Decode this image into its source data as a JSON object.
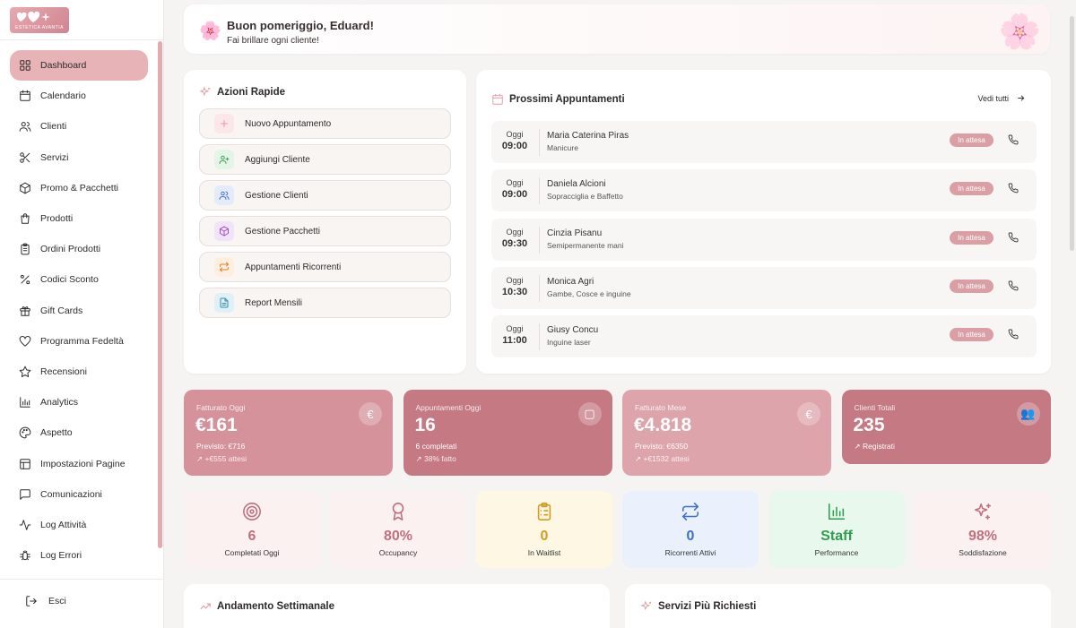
{
  "brand": {
    "tagline": "ESTETICA AVANTIA"
  },
  "sidebar": {
    "items": [
      {
        "label": "Dashboard",
        "icon": "dashboard-icon",
        "active": true
      },
      {
        "label": "Calendario",
        "icon": "calendar-icon"
      },
      {
        "label": "Clienti",
        "icon": "users-icon"
      },
      {
        "label": "Servizi",
        "icon": "scissors-icon"
      },
      {
        "label": "Promo & Pacchetti",
        "icon": "package-icon"
      },
      {
        "label": "Prodotti",
        "icon": "shopping-bag-icon"
      },
      {
        "label": "Ordini Prodotti",
        "icon": "clipboard-icon"
      },
      {
        "label": "Codici Sconto",
        "icon": "percent-icon"
      },
      {
        "label": "Gift Cards",
        "icon": "gift-icon"
      },
      {
        "label": "Programma Fedeltà",
        "icon": "heart-icon"
      },
      {
        "label": "Recensioni",
        "icon": "star-icon"
      },
      {
        "label": "Analytics",
        "icon": "bar-chart-icon"
      },
      {
        "label": "Aspetto",
        "icon": "palette-icon"
      },
      {
        "label": "Impostazioni Pagine",
        "icon": "layout-icon"
      },
      {
        "label": "Comunicazioni",
        "icon": "message-icon"
      },
      {
        "label": "Log Attività",
        "icon": "activity-icon"
      },
      {
        "label": "Log Errori",
        "icon": "bug-icon"
      }
    ],
    "logout_label": "Esci"
  },
  "greeting": {
    "title": "Buon pomeriggio, Eduard!",
    "subtitle": "Fai brillare ogni cliente!"
  },
  "quick_actions": {
    "title": "Azioni Rapide",
    "items": [
      {
        "label": "Nuovo Appuntamento",
        "icon": "plus-icon",
        "color": "#fbe7e9",
        "fg": "#e89aa3"
      },
      {
        "label": "Aggiungi Cliente",
        "icon": "user-plus-icon",
        "color": "#e3f5e7",
        "fg": "#3fa45a"
      },
      {
        "label": "Gestione Clienti",
        "icon": "users-icon",
        "color": "#e4ecfb",
        "fg": "#4a73d4"
      },
      {
        "label": "Gestione Pacchetti",
        "icon": "package-icon",
        "color": "#f1e4fa",
        "fg": "#a34cc9"
      },
      {
        "label": "Appuntamenti Ricorrenti",
        "icon": "repeat-icon",
        "color": "#fdeedd",
        "fg": "#e2842c"
      },
      {
        "label": "Report Mensili",
        "icon": "file-icon",
        "color": "#e0f0f7",
        "fg": "#2f8fb2"
      }
    ]
  },
  "appointments": {
    "title": "Prossimi Appuntamenti",
    "see_all": "Vedi tutti",
    "items": [
      {
        "day": "Oggi",
        "time": "09:00",
        "name": "Maria Caterina Piras",
        "service": "Manicure",
        "status": "In attesa"
      },
      {
        "day": "Oggi",
        "time": "09:00",
        "name": "Daniela Alcioni",
        "service": "Sopracciglia e Baffetto",
        "status": "In attesa"
      },
      {
        "day": "Oggi",
        "time": "09:30",
        "name": "Cinzia Pisanu",
        "service": "Semipermanente mani",
        "status": "In attesa"
      },
      {
        "day": "Oggi",
        "time": "10:30",
        "name": "Monica Agri",
        "service": "Gambe, Cosce e inguine",
        "status": "In attesa"
      },
      {
        "day": "Oggi",
        "time": "11:00",
        "name": "Giusy Concu",
        "service": "Inguine laser",
        "status": "In attesa"
      }
    ]
  },
  "stats": [
    {
      "label": "Fatturato Oggi",
      "value": "€161",
      "line1": "Previsto: €716",
      "line2": "↗ +€555 attesi",
      "icon": "euro-icon",
      "glyph": "€",
      "bg": "#d5929b"
    },
    {
      "label": "Appuntamenti Oggi",
      "value": "16",
      "line1": "6 completati",
      "line2": "↗ 38% fatto",
      "icon": "calendar-icon",
      "glyph": "▢",
      "bg": "#c57983"
    },
    {
      "label": "Fatturato Mese",
      "value": "€4.818",
      "line1": "Previsto: €6350",
      "line2": "↗ +€1532 attesi",
      "icon": "euro-icon",
      "glyph": "€",
      "bg": "#dda4ab"
    },
    {
      "label": "Clienti Totali",
      "value": "235",
      "line1": "↗ Registrati",
      "line2": "",
      "icon": "users-icon",
      "glyph": "👥",
      "bg": "#c57983"
    }
  ],
  "mini_stats": [
    {
      "value": "6",
      "label": "Completati Oggi",
      "icon": "target-icon",
      "color": "#c06f7c",
      "bg": "#fbf1f1"
    },
    {
      "value": "80%",
      "label": "Occupancy",
      "icon": "award-icon",
      "color": "#c06f7c",
      "bg": "#fbf1f1"
    },
    {
      "value": "0",
      "label": "In Waitlist",
      "icon": "clipboard-list-icon",
      "color": "#d59a22",
      "bg": "#fdf7e3"
    },
    {
      "value": "0",
      "label": "Ricorrenti Attivi",
      "icon": "repeat-icon",
      "color": "#3a6fd1",
      "bg": "#eaf1fc"
    },
    {
      "value": "Staff",
      "label": "Performance",
      "icon": "bar-chart-icon",
      "color": "#2f9e4f",
      "bg": "#e9f8ed"
    },
    {
      "value": "98%",
      "label": "Soddisfazione",
      "icon": "sparkles-icon",
      "color": "#c06f7c",
      "bg": "#fbf1f1"
    }
  ],
  "sections": {
    "weekly": "Andamento Settimanale",
    "top_services": "Servizi Più Richiesti"
  }
}
